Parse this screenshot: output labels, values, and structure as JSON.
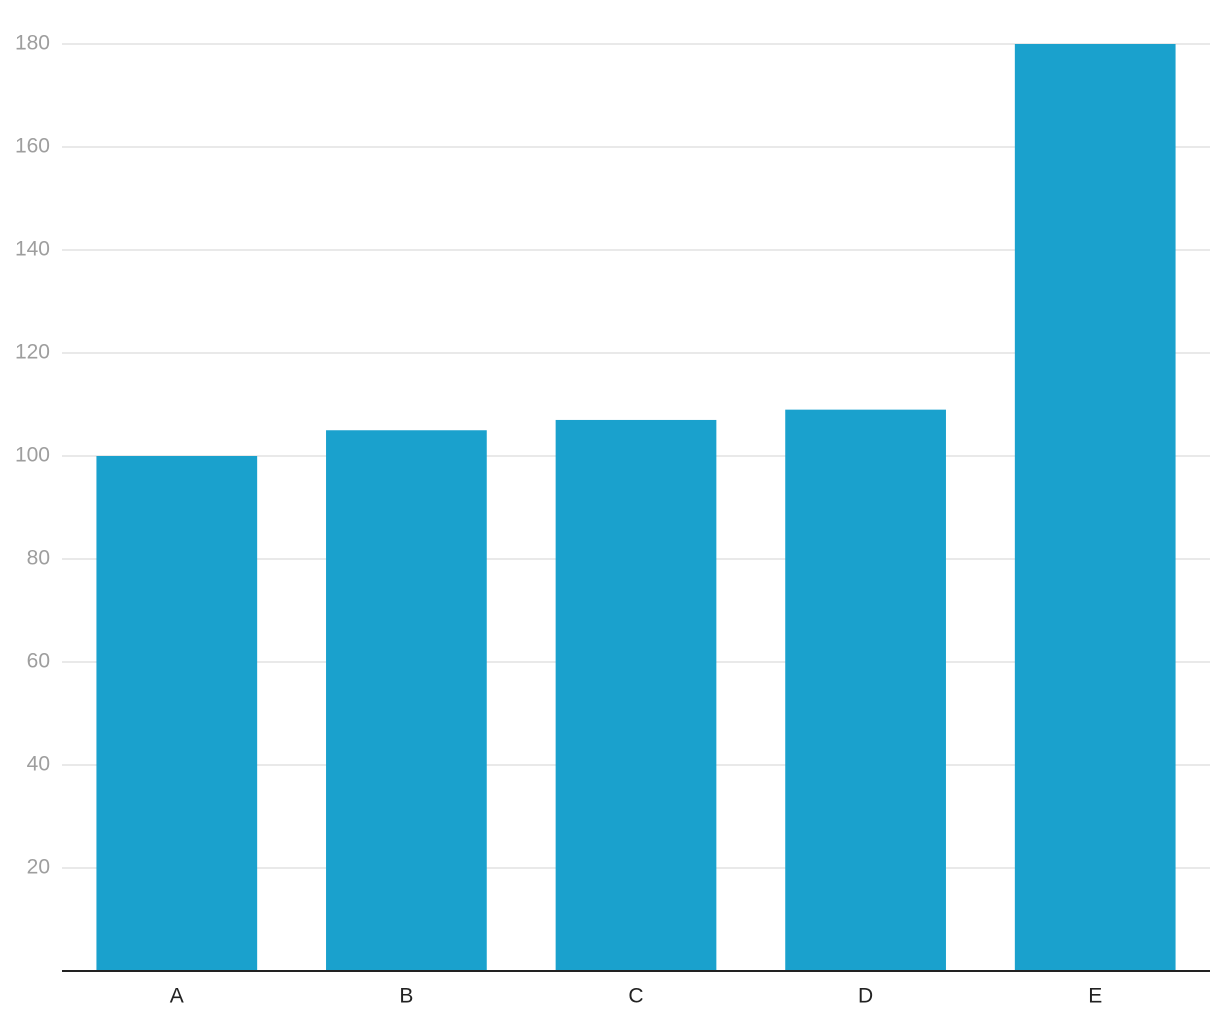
{
  "chart_data": {
    "type": "bar",
    "categories": [
      "A",
      "B",
      "C",
      "D",
      "E"
    ],
    "values": [
      100,
      105,
      107,
      109,
      180
    ],
    "color": "#1aa1cd",
    "ylim": [
      0,
      180
    ],
    "yticks": [
      20,
      40,
      60,
      80,
      100,
      120,
      140,
      160,
      180
    ],
    "grid": true
  }
}
